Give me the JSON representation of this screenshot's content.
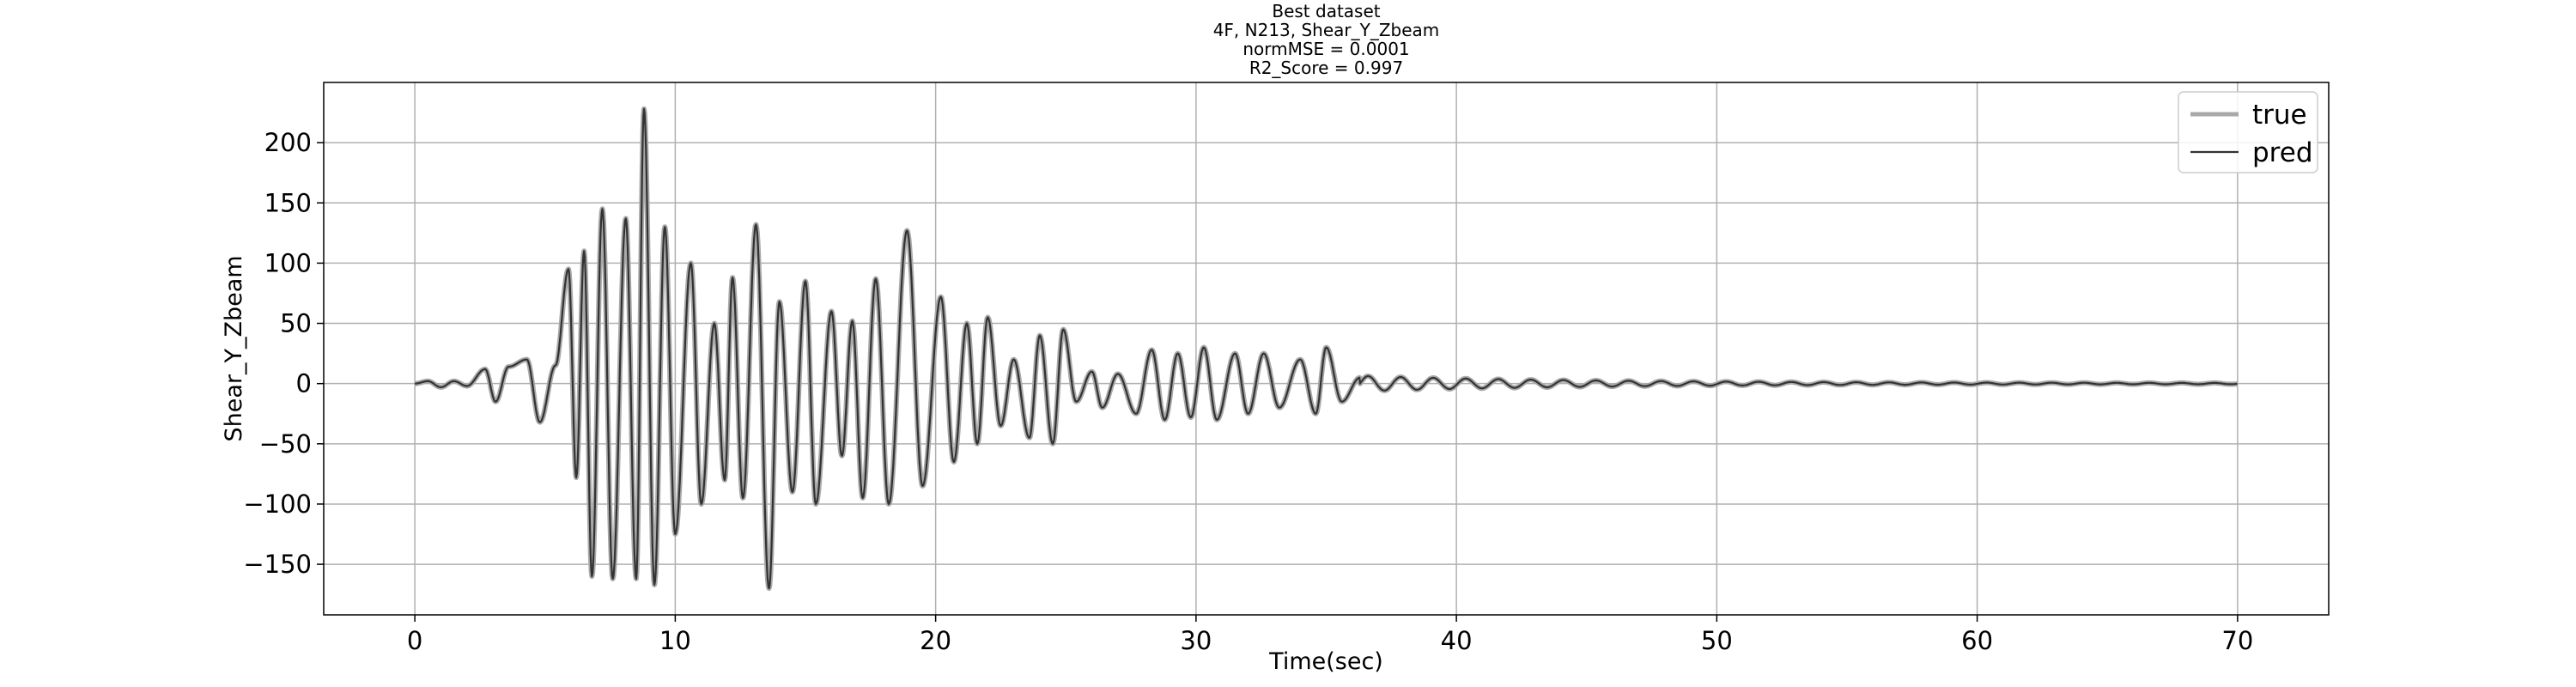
{
  "chart_data": {
    "type": "line",
    "title_lines": [
      "Best dataset",
      "4F, N213, Shear_Y_Zbeam",
      "normMSE = 0.0001",
      "R2_Score = 0.997"
    ],
    "xlabel": "Time(sec)",
    "ylabel": "Shear_Y_Zbeam",
    "xlim": [
      -3.5,
      73.5
    ],
    "ylim": [
      -192,
      250
    ],
    "xticks": [
      0,
      10,
      20,
      30,
      40,
      50,
      60,
      70
    ],
    "yticks": [
      -150,
      -100,
      -50,
      0,
      50,
      100,
      150,
      200
    ],
    "grid": true,
    "legend_position": "top-right",
    "series": [
      {
        "name": "true",
        "color": "#a9a9a9"
      },
      {
        "name": "pred",
        "color": "#333333"
      }
    ],
    "x_range": [
      0,
      70
    ],
    "approx_peaks": [
      [
        0.0,
        0
      ],
      [
        0.5,
        2
      ],
      [
        1.0,
        -3
      ],
      [
        1.5,
        2
      ],
      [
        2.0,
        -2
      ],
      [
        2.7,
        12
      ],
      [
        3.1,
        -15
      ],
      [
        3.6,
        14
      ],
      [
        4.3,
        20
      ],
      [
        4.8,
        -32
      ],
      [
        5.4,
        15
      ],
      [
        5.9,
        95
      ],
      [
        6.2,
        -78
      ],
      [
        6.5,
        110
      ],
      [
        6.8,
        -160
      ],
      [
        7.2,
        145
      ],
      [
        7.6,
        -162
      ],
      [
        8.1,
        137
      ],
      [
        8.5,
        -162
      ],
      [
        8.8,
        228
      ],
      [
        9.2,
        -167
      ],
      [
        9.6,
        130
      ],
      [
        10.0,
        -125
      ],
      [
        10.6,
        100
      ],
      [
        11.0,
        -100
      ],
      [
        11.5,
        50
      ],
      [
        11.9,
        -80
      ],
      [
        12.2,
        88
      ],
      [
        12.6,
        -95
      ],
      [
        13.1,
        132
      ],
      [
        13.6,
        -170
      ],
      [
        14.0,
        68
      ],
      [
        14.5,
        -90
      ],
      [
        15.0,
        85
      ],
      [
        15.4,
        -100
      ],
      [
        16.0,
        60
      ],
      [
        16.4,
        -60
      ],
      [
        16.8,
        52
      ],
      [
        17.2,
        -95
      ],
      [
        17.7,
        87
      ],
      [
        18.2,
        -100
      ],
      [
        18.9,
        127
      ],
      [
        19.5,
        -85
      ],
      [
        20.2,
        72
      ],
      [
        20.7,
        -65
      ],
      [
        21.2,
        50
      ],
      [
        21.6,
        -50
      ],
      [
        22.0,
        55
      ],
      [
        22.5,
        -35
      ],
      [
        23.0,
        20
      ],
      [
        23.6,
        -45
      ],
      [
        24.0,
        40
      ],
      [
        24.5,
        -50
      ],
      [
        24.9,
        45
      ],
      [
        25.4,
        -15
      ],
      [
        26.0,
        10
      ],
      [
        26.4,
        -20
      ],
      [
        27.0,
        8
      ],
      [
        27.7,
        -25
      ],
      [
        28.3,
        28
      ],
      [
        28.8,
        -30
      ],
      [
        29.3,
        25
      ],
      [
        29.8,
        -28
      ],
      [
        30.3,
        30
      ],
      [
        30.8,
        -30
      ],
      [
        31.5,
        25
      ],
      [
        32.0,
        -25
      ],
      [
        32.6,
        25
      ],
      [
        33.2,
        -20
      ],
      [
        34.0,
        20
      ],
      [
        34.6,
        -25
      ],
      [
        35.0,
        30
      ],
      [
        35.6,
        -15
      ],
      [
        36.3,
        5
      ],
      [
        37.0,
        -5
      ],
      [
        38.0,
        6
      ],
      [
        40.0,
        -5
      ],
      [
        42.0,
        4
      ],
      [
        45.0,
        -3
      ],
      [
        48.0,
        2
      ],
      [
        52.0,
        -1.5
      ],
      [
        58.0,
        1
      ],
      [
        65.0,
        -0.5
      ],
      [
        70.0,
        0
      ]
    ]
  }
}
